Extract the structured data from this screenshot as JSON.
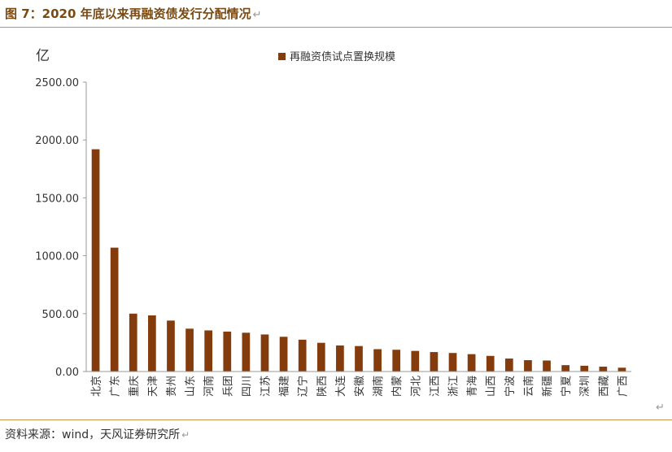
{
  "header": {
    "title": "图 7：2020 年底以来再融资债发行分配情况"
  },
  "footer": {
    "source": "资料来源：wind，天风证券研究所"
  },
  "chart_data": {
    "type": "bar",
    "ylabel": "亿",
    "ylim": [
      0,
      2500
    ],
    "yticks": [
      "0.00",
      "500.00",
      "1000.00",
      "1500.00",
      "2000.00",
      "2500.00"
    ],
    "grid": false,
    "legend_position": "top-center",
    "series": [
      {
        "name": "再融资债试点置换规模",
        "color": "#843c0c",
        "values": [
          1920,
          1070,
          500,
          485,
          440,
          370,
          355,
          345,
          335,
          320,
          300,
          275,
          248,
          225,
          220,
          193,
          188,
          178,
          168,
          160,
          150,
          135,
          112,
          98,
          95,
          55,
          50,
          42,
          33
        ]
      }
    ],
    "categories": [
      "北京",
      "广东",
      "重庆",
      "天津",
      "贵州",
      "山东",
      "河南",
      "兵团",
      "四川",
      "江苏",
      "福建",
      "辽宁",
      "陕西",
      "大连",
      "安徽",
      "湖南",
      "内蒙",
      "河北",
      "江西",
      "浙江",
      "青海",
      "山西",
      "宁波",
      "云南",
      "新疆",
      "宁夏",
      "深圳",
      "西藏",
      "广西"
    ]
  }
}
